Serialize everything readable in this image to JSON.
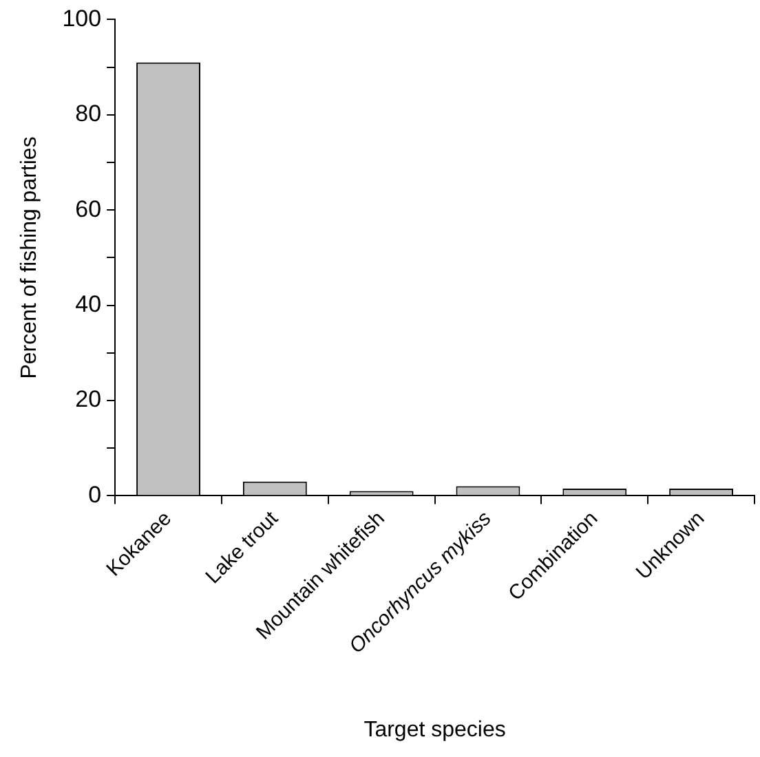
{
  "chart_data": {
    "type": "bar",
    "xlabel": "Target species",
    "ylabel": "Percent of fishing parties",
    "categories": [
      "Kokanee",
      "Lake trout",
      "Mountain whitefish",
      "Oncorhyncus mykiss",
      "Combination",
      "Unknown"
    ],
    "values": [
      91,
      3,
      1,
      2,
      1.5,
      1.5
    ],
    "color": "#c0c0c0",
    "ylim": [
      0,
      100
    ],
    "yticks": [
      0,
      {
        "value": 10,
        "label": null
      },
      20,
      {
        "value": 30,
        "label": null
      },
      40,
      {
        "value": 50,
        "label": null
      },
      60,
      {
        "value": 70,
        "label": null
      },
      80,
      {
        "value": 90,
        "label": null
      },
      100
    ],
    "grid": false
  }
}
